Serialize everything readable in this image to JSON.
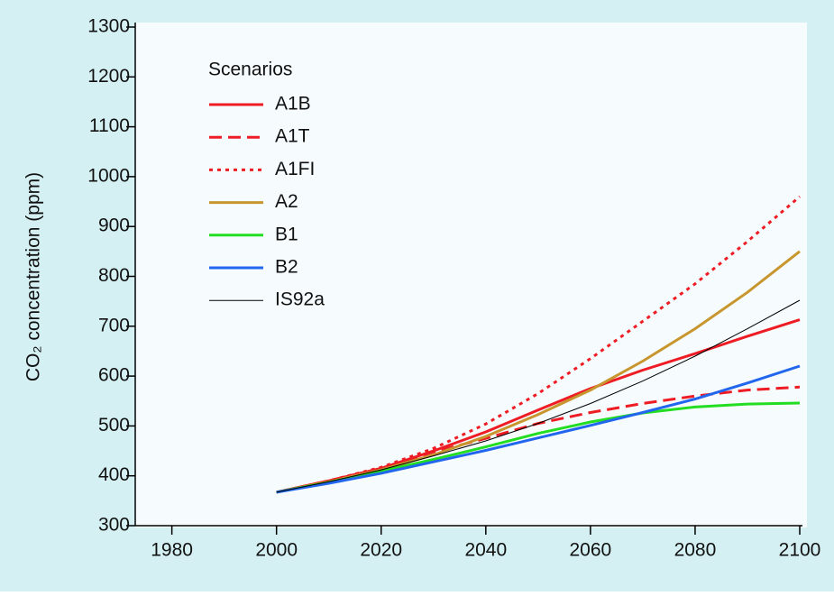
{
  "chart_data": {
    "type": "line",
    "y_label": "CO₂ concentration (ppm)",
    "legend_title": "Scenarios",
    "legend": "top-left",
    "x": [
      2000,
      2010,
      2020,
      2030,
      2040,
      2050,
      2060,
      2070,
      2080,
      2090,
      2100
    ],
    "xlim": [
      1973,
      2100
    ],
    "xticks": [
      1980,
      2000,
      2020,
      2040,
      2060,
      2080,
      2100
    ],
    "ylim": [
      300,
      1300
    ],
    "yticks": [
      300,
      400,
      500,
      600,
      700,
      800,
      900,
      1000,
      1100,
      1200,
      1300
    ],
    "series": [
      {
        "name": "A1B",
        "color": "#ee1c24",
        "dash": "solid",
        "width": 3,
        "values": [
          367,
          390,
          415,
          450,
          488,
          532,
          575,
          612,
          645,
          680,
          713
        ]
      },
      {
        "name": "A1T",
        "color": "#ee1c24",
        "dash": "dashed",
        "width": 3,
        "values": [
          367,
          390,
          415,
          448,
          475,
          505,
          527,
          545,
          560,
          572,
          578
        ]
      },
      {
        "name": "A1FI",
        "color": "#ee1c24",
        "dash": "dotted",
        "width": 3,
        "values": [
          367,
          390,
          417,
          455,
          504,
          565,
          635,
          710,
          785,
          870,
          960
        ]
      },
      {
        "name": "A2",
        "color": "#c8962e",
        "dash": "solid",
        "width": 3,
        "values": [
          367,
          388,
          412,
          442,
          479,
          523,
          572,
          630,
          695,
          768,
          850
        ]
      },
      {
        "name": "B1",
        "color": "#22dd22",
        "dash": "solid",
        "width": 3,
        "values": [
          367,
          387,
          409,
          433,
          458,
          485,
          508,
          526,
          538,
          544,
          546
        ]
      },
      {
        "name": "B2",
        "color": "#2266ee",
        "dash": "solid",
        "width": 3,
        "values": [
          367,
          385,
          405,
          428,
          451,
          476,
          501,
          527,
          554,
          586,
          620
        ]
      },
      {
        "name": "IS92a",
        "color": "#000000",
        "dash": "solid",
        "width": 1,
        "values": [
          367,
          388,
          412,
          440,
          470,
          505,
          545,
          590,
          640,
          695,
          752
        ]
      }
    ]
  }
}
